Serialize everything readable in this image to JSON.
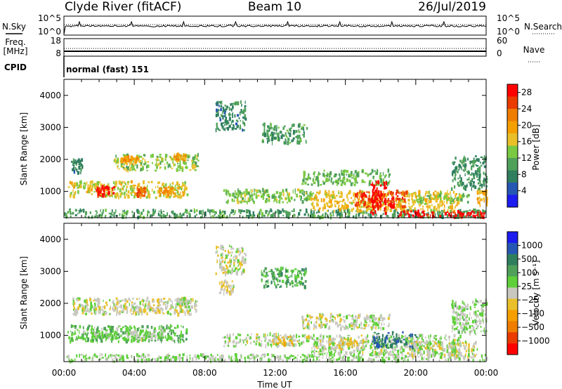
{
  "header": {
    "station": "Clyde River (fitACF)",
    "beam": "Beam 10",
    "date": "26/Jul/2019"
  },
  "strip_noise": {
    "left_label": "N.Sky",
    "right_label": "N.Search",
    "left_ticks": [
      "10^5",
      "10^0"
    ],
    "right_ticks": [
      "10^5",
      "10^0"
    ]
  },
  "strip_freq": {
    "left_label_1": "Freq.",
    "left_label_2": "[MHz]",
    "right_label": "Nave",
    "left_ticks": [
      "18",
      "8"
    ],
    "right_ticks": [
      "60",
      "0"
    ]
  },
  "cpid": {
    "label": "CPID",
    "value": "normal (fast) 151"
  },
  "x_axis": {
    "title": "Time UT",
    "ticks": [
      "00:00",
      "04:00",
      "08:00",
      "12:00",
      "16:00",
      "20:00",
      "00:00"
    ],
    "range_hours": [
      0,
      24
    ]
  },
  "chart_data": [
    {
      "type": "heatmap",
      "title": "",
      "ylabel": "Slant Range [km]",
      "ylim": [
        180,
        4500
      ],
      "yticks": [
        "1000",
        "2000",
        "3000",
        "4000"
      ],
      "colorbar": {
        "label": "Power [dB]",
        "ticks": [
          "4",
          "8",
          "12",
          "16",
          "20",
          "24",
          "28"
        ],
        "range": [
          0,
          30
        ],
        "colors": [
          "#1c1cf0",
          "#2656b4",
          "#2f7f5e",
          "#4fa15a",
          "#7ac943",
          "#e9c02a",
          "#f5a000",
          "#ef7d00",
          "#ea3c00",
          "#ff0000"
        ]
      },
      "regions": [
        {
          "t0": 0.0,
          "t1": 24.0,
          "r0": 180,
          "r1": 420,
          "v": 10
        },
        {
          "t0": 0.2,
          "t1": 7.0,
          "r0": 800,
          "r1": 1300,
          "v": 16
        },
        {
          "t0": 1.8,
          "t1": 2.8,
          "r0": 850,
          "r1": 1150,
          "v": 27
        },
        {
          "t0": 4.0,
          "t1": 4.6,
          "r0": 850,
          "r1": 1100,
          "v": 24
        },
        {
          "t0": 5.4,
          "t1": 6.3,
          "r0": 900,
          "r1": 1150,
          "v": 21
        },
        {
          "t0": 0.4,
          "t1": 1.0,
          "r0": 1550,
          "r1": 2000,
          "v": 8
        },
        {
          "t0": 2.8,
          "t1": 7.6,
          "r0": 1650,
          "r1": 2150,
          "v": 14
        },
        {
          "t0": 3.2,
          "t1": 4.2,
          "r0": 1850,
          "r1": 2100,
          "v": 20
        },
        {
          "t0": 6.2,
          "t1": 6.9,
          "r0": 1950,
          "r1": 2150,
          "v": 20
        },
        {
          "t0": 8.6,
          "t1": 10.3,
          "r0": 2900,
          "r1": 3800,
          "v": 8
        },
        {
          "t0": 11.2,
          "t1": 13.8,
          "r0": 2500,
          "r1": 3100,
          "v": 10
        },
        {
          "t0": 9.0,
          "t1": 14.0,
          "r0": 650,
          "r1": 1050,
          "v": 13
        },
        {
          "t0": 13.5,
          "t1": 18.5,
          "r0": 1200,
          "r1": 1650,
          "v": 12
        },
        {
          "t0": 14.0,
          "t1": 22.5,
          "r0": 380,
          "r1": 1000,
          "v": 17
        },
        {
          "t0": 16.5,
          "t1": 19.5,
          "r0": 500,
          "r1": 1000,
          "v": 26
        },
        {
          "t0": 17.4,
          "t1": 18.3,
          "r0": 300,
          "r1": 1300,
          "v": 29
        },
        {
          "t0": 19.0,
          "t1": 23.9,
          "r0": 180,
          "r1": 380,
          "v": 29
        },
        {
          "t0": 20.0,
          "t1": 23.0,
          "r0": 650,
          "r1": 900,
          "v": 13
        },
        {
          "t0": 22.0,
          "t1": 24.0,
          "r0": 1050,
          "r1": 2100,
          "v": 9
        },
        {
          "t0": 23.4,
          "t1": 24.0,
          "r0": 550,
          "r1": 1000,
          "v": 19
        }
      ]
    },
    {
      "type": "heatmap",
      "title": "",
      "ylabel": "Slant Range [km]",
      "ylim": [
        180,
        4500
      ],
      "yticks": [
        "1000",
        "2000",
        "3000",
        "4000"
      ],
      "colorbar": {
        "label": "Velocity [m s⁻¹]",
        "ticks": [
          "1000",
          "500",
          "100",
          "25",
          "−25",
          "−100",
          "−500",
          "−1000"
        ],
        "range": [
          -1200,
          1200
        ],
        "colors": [
          "#1c1cf0",
          "#2656b4",
          "#2f7f5e",
          "#4fa15a",
          "#5fd03a",
          "#c8c8c0",
          "#e9c02a",
          "#f5a000",
          "#ef7d00",
          "#ea3c00",
          "#ff0000"
        ]
      },
      "regions": [
        {
          "t0": 0.0,
          "t1": 24.0,
          "r0": 180,
          "r1": 400,
          "v": 120
        },
        {
          "t0": 0.2,
          "t1": 7.0,
          "r0": 800,
          "r1": 1300,
          "v": 300
        },
        {
          "t0": 1.5,
          "t1": 3.0,
          "r0": 850,
          "r1": 1200,
          "v": 150
        },
        {
          "t0": 3.5,
          "t1": 6.0,
          "r0": 850,
          "r1": 1150,
          "v": 90
        },
        {
          "t0": 0.4,
          "t1": 7.6,
          "r0": 1650,
          "r1": 2150,
          "v": 0
        },
        {
          "t0": 4.0,
          "t1": 5.5,
          "r0": 1700,
          "r1": 1900,
          "v": -90
        },
        {
          "t0": 6.4,
          "t1": 7.2,
          "r0": 1950,
          "r1": 2150,
          "v": 80
        },
        {
          "t0": 8.6,
          "t1": 10.3,
          "r0": 2900,
          "r1": 3800,
          "v": 0
        },
        {
          "t0": 8.8,
          "t1": 9.6,
          "r0": 2300,
          "r1": 2700,
          "v": -100
        },
        {
          "t0": 11.2,
          "t1": 13.8,
          "r0": 2500,
          "r1": 3100,
          "v": 400
        },
        {
          "t0": 9.0,
          "t1": 14.0,
          "r0": 650,
          "r1": 1050,
          "v": 80
        },
        {
          "t0": 11.8,
          "t1": 13.0,
          "r0": 700,
          "r1": 950,
          "v": -250
        },
        {
          "t0": 13.5,
          "t1": 18.5,
          "r0": 1200,
          "r1": 1650,
          "v": 0
        },
        {
          "t0": 14.0,
          "t1": 22.5,
          "r0": 380,
          "r1": 1000,
          "v": 70
        },
        {
          "t0": 15.0,
          "t1": 17.0,
          "r0": 550,
          "r1": 900,
          "v": -150
        },
        {
          "t0": 17.5,
          "t1": 20.0,
          "r0": 600,
          "r1": 1100,
          "v": 700
        },
        {
          "t0": 19.5,
          "t1": 23.5,
          "r0": 300,
          "r1": 800,
          "v": 0
        },
        {
          "t0": 22.0,
          "t1": 24.0,
          "r0": 1050,
          "r1": 2100,
          "v": 150
        }
      ]
    }
  ]
}
